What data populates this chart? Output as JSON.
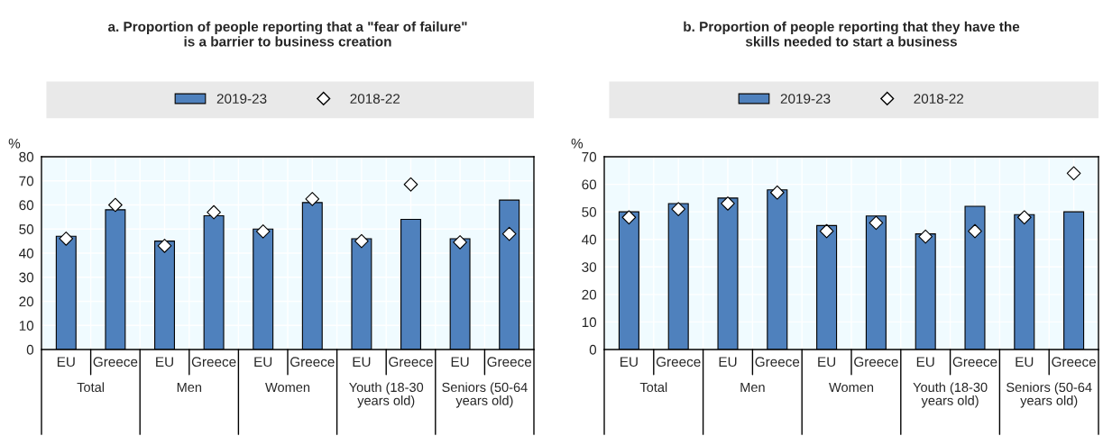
{
  "chart_data": [
    {
      "type": "bar",
      "title": "a. Proportion of people reporting that a \"fear of failure\"\nis a barrier to business creation",
      "ylabel": "%",
      "categories": [
        "EU",
        "Greece",
        "EU",
        "Greece",
        "EU",
        "Greece",
        "EU",
        "Greece",
        "EU",
        "Greece"
      ],
      "series": [
        {
          "name": "2019-23",
          "type": "bar",
          "color": "#4f81bd",
          "values": [
            47,
            58,
            45,
            55.5,
            50,
            61,
            46,
            54,
            46,
            62
          ]
        },
        {
          "name": "2018-22",
          "type": "scatter",
          "color": "#ffffff",
          "marker": "diamond",
          "values": [
            46,
            60,
            43,
            57,
            49,
            62.5,
            45,
            68.5,
            44.5,
            48
          ]
        }
      ],
      "annotations": [
        "Total",
        "Men",
        "Women",
        "Youth (18-30\nyears old)",
        "Seniors (50-64\nyears old)"
      ],
      "ylim": [
        0,
        80
      ],
      "yticks": [
        0,
        10,
        20,
        30,
        40,
        50,
        60,
        70,
        80
      ],
      "grid": true,
      "legend": "top"
    },
    {
      "type": "bar",
      "title": "b. Proportion of people reporting that they have the\nskills needed to start a business",
      "ylabel": "%",
      "categories": [
        "EU",
        "Greece",
        "EU",
        "Greece",
        "EU",
        "Greece",
        "EU",
        "Greece",
        "EU",
        "Greece"
      ],
      "series": [
        {
          "name": "2019-23",
          "type": "bar",
          "color": "#4f81bd",
          "values": [
            50,
            53,
            55,
            58,
            45,
            48.5,
            42,
            52,
            49,
            50
          ]
        },
        {
          "name": "2018-22",
          "type": "scatter",
          "color": "#ffffff",
          "marker": "diamond",
          "values": [
            48,
            51,
            53,
            57,
            43,
            46,
            41,
            43,
            48,
            64
          ]
        }
      ],
      "annotations": [
        "Total",
        "Men",
        "Women",
        "Youth (18-30\nyears old)",
        "Seniors (50-64\nyears old)"
      ],
      "ylim": [
        0,
        70
      ],
      "yticks": [
        0,
        10,
        20,
        30,
        40,
        50,
        60,
        70
      ],
      "grid": true,
      "legend": "top"
    }
  ]
}
